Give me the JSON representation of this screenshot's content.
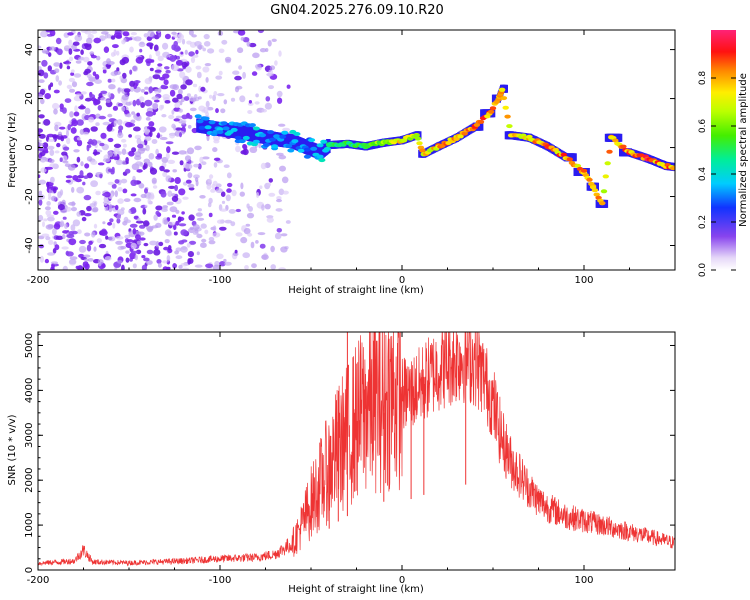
{
  "chart_data": [
    {
      "type": "heatmap",
      "title": "GN04.2025.276.09.10.R20",
      "xlabel": "Height of straight line (km)",
      "ylabel": "Frequency (Hz)",
      "xlim": [
        -200,
        150
      ],
      "ylim": [
        -50,
        48
      ],
      "x_ticks": [
        -200,
        -100,
        0,
        100
      ],
      "y_ticks": [
        -40,
        -20,
        0,
        20,
        40
      ],
      "x_tick_labels": [
        "-200",
        "-100",
        "0",
        "100"
      ],
      "y_tick_labels": [
        "-40",
        "-20",
        "0",
        "20",
        "40"
      ],
      "colorbar": {
        "label": "Normalized spectral amplitude",
        "range": [
          0,
          1
        ],
        "ticks": [
          0.0,
          0.2,
          0.4,
          0.6,
          0.8
        ],
        "tick_labels": [
          "0.0",
          "0.2",
          "0.4",
          "0.6",
          "0.8"
        ]
      },
      "noise_region": {
        "x_range": [
          -200,
          -62
        ],
        "f_range": [
          -50,
          48
        ],
        "amplitude": 0.1
      },
      "trace": [
        {
          "x": -112,
          "f": 9.0,
          "a": 0.35
        },
        {
          "x": -100,
          "f": 7.5,
          "a": 0.4
        },
        {
          "x": -90,
          "f": 6.5,
          "a": 0.35
        },
        {
          "x": -80,
          "f": 5.0,
          "a": 0.4
        },
        {
          "x": -70,
          "f": 3.5,
          "a": 0.35
        },
        {
          "x": -60,
          "f": 2.5,
          "a": 0.4
        },
        {
          "x": -52,
          "f": 0.0,
          "a": 0.35
        },
        {
          "x": -45,
          "f": -2.0,
          "a": 0.4
        },
        {
          "x": -40,
          "f": 1.0,
          "a": 0.5
        },
        {
          "x": -30,
          "f": 1.5,
          "a": 0.55
        },
        {
          "x": -20,
          "f": 0.5,
          "a": 0.6
        },
        {
          "x": -10,
          "f": 2.0,
          "a": 0.7
        },
        {
          "x": 0,
          "f": 3.0,
          "a": 0.8
        },
        {
          "x": 8,
          "f": 5.0,
          "a": 0.8
        },
        {
          "x": 12,
          "f": -2.5,
          "a": 0.8
        },
        {
          "x": 20,
          "f": 0.5,
          "a": 0.85
        },
        {
          "x": 30,
          "f": 4.0,
          "a": 0.9
        },
        {
          "x": 40,
          "f": 8.5,
          "a": 0.9
        },
        {
          "x": 48,
          "f": 14.0,
          "a": 0.9
        },
        {
          "x": 53,
          "f": 20.0,
          "a": 0.85
        },
        {
          "x": 55,
          "f": 24.0,
          "a": 0.8
        },
        {
          "x": 60,
          "f": 5.0,
          "a": 0.8
        },
        {
          "x": 70,
          "f": 4.0,
          "a": 0.85
        },
        {
          "x": 80,
          "f": 0.5,
          "a": 0.9
        },
        {
          "x": 90,
          "f": -4.0,
          "a": 0.9
        },
        {
          "x": 100,
          "f": -10.0,
          "a": 0.9
        },
        {
          "x": 105,
          "f": -16.0,
          "a": 0.85
        },
        {
          "x": 110,
          "f": -23.0,
          "a": 0.8
        },
        {
          "x": 115,
          "f": 4.0,
          "a": 0.85
        },
        {
          "x": 125,
          "f": -2.0,
          "a": 0.9
        },
        {
          "x": 135,
          "f": -4.5,
          "a": 0.95
        },
        {
          "x": 145,
          "f": -7.5,
          "a": 0.9
        },
        {
          "x": 150,
          "f": -8.0,
          "a": 0.85
        }
      ]
    },
    {
      "type": "line",
      "title": "",
      "xlabel": "Height of straight line (km)",
      "ylabel": "SNR (10 * v/v)",
      "xlim": [
        -200,
        150
      ],
      "ylim": [
        0,
        5300
      ],
      "x_ticks": [
        -200,
        -100,
        0,
        100
      ],
      "y_ticks": [
        0,
        1000,
        2000,
        3000,
        4000,
        5000
      ],
      "x_tick_labels": [
        "-200",
        "-100",
        "0",
        "100"
      ],
      "y_tick_labels": [
        "0",
        "1000",
        "2000",
        "3000",
        "4000",
        "5000"
      ],
      "color": "#ee3333",
      "series": [
        {
          "name": "SNR",
          "x": [
            -200,
            -180,
            -175,
            -170,
            -150,
            -120,
            -100,
            -80,
            -70,
            -60,
            -55,
            -50,
            -45,
            -40,
            -35,
            -30,
            -25,
            -20,
            -15,
            -10,
            -5,
            0,
            5,
            10,
            15,
            20,
            25,
            30,
            35,
            40,
            45,
            50,
            55,
            60,
            65,
            70,
            75,
            80,
            90,
            100,
            110,
            120,
            130,
            140,
            150
          ],
          "y": [
            150,
            200,
            450,
            180,
            160,
            200,
            250,
            280,
            350,
            600,
            1000,
            1500,
            1900,
            2300,
            2700,
            3000,
            3300,
            3600,
            3750,
            3800,
            3900,
            3900,
            3950,
            4100,
            4300,
            4500,
            4600,
            4700,
            4750,
            4650,
            4300,
            3700,
            2900,
            2400,
            2100,
            1800,
            1550,
            1400,
            1200,
            1100,
            1000,
            900,
            800,
            700,
            600
          ]
        }
      ],
      "spikes": [
        {
          "x": -30,
          "y": 5300
        },
        {
          "x": -35,
          "y": 3300
        },
        {
          "x": -40,
          "y": 2900
        },
        {
          "x": -10,
          "y": 3500
        },
        {
          "x": 5,
          "y": 4000
        },
        {
          "x": 12,
          "y": 4300
        },
        {
          "x": 35,
          "y": 4950
        }
      ]
    }
  ]
}
